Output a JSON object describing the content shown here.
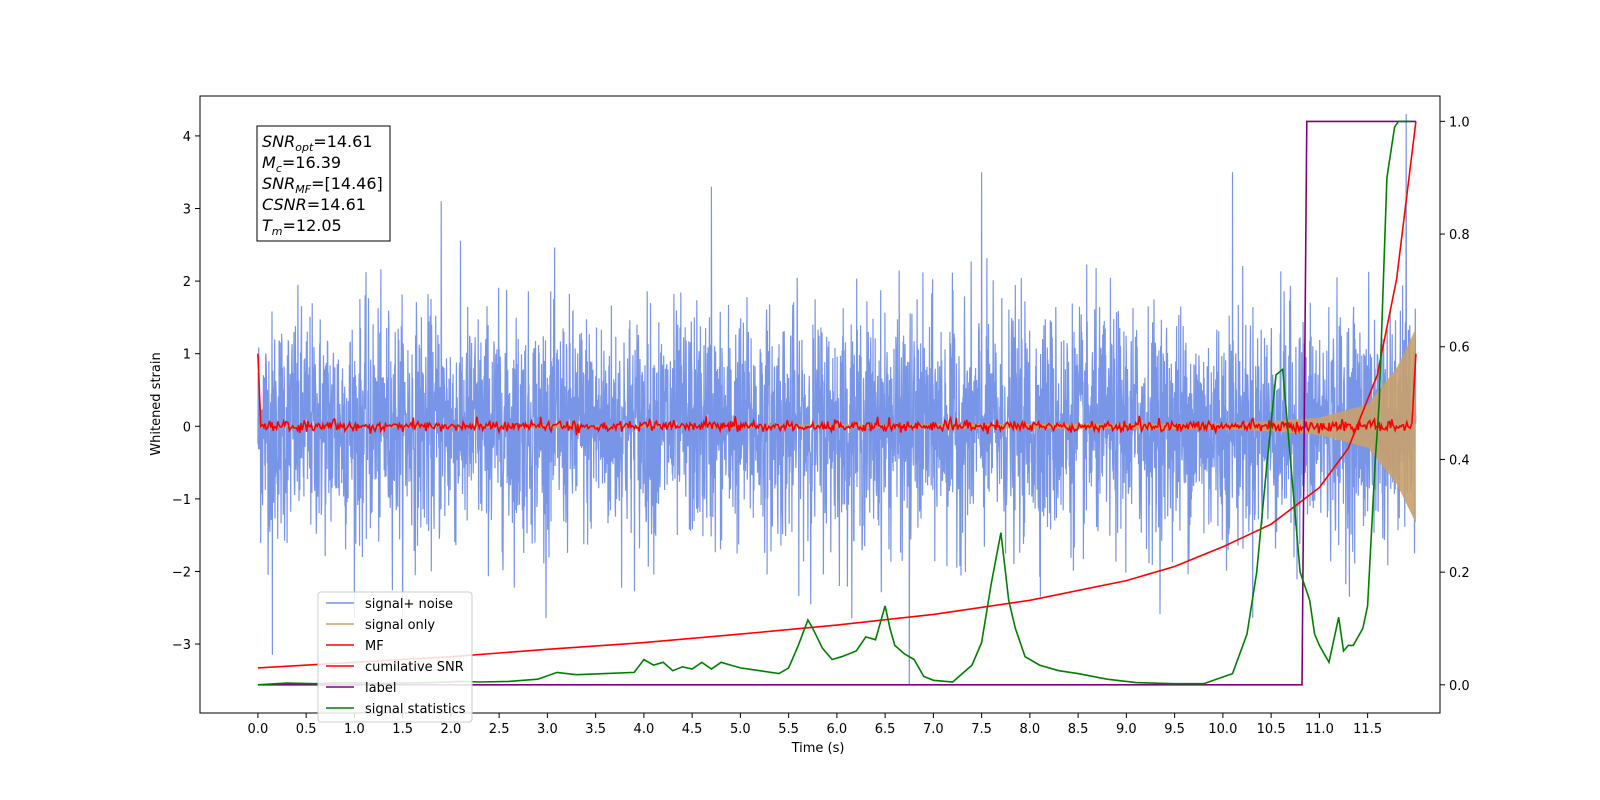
{
  "chart_data": {
    "type": "line",
    "xlabel": "Time (s)",
    "ylabel": "Whitened strain",
    "xlim": [
      -0.6,
      12.25
    ],
    "ylim": [
      -3.95,
      4.55
    ],
    "y2lim": [
      -0.05,
      1.045
    ],
    "x_ticks": [
      "0.0",
      "0.5",
      "1.0",
      "1.5",
      "2.0",
      "2.5",
      "3.0",
      "3.5",
      "4.0",
      "4.5",
      "5.0",
      "5.5",
      "6.0",
      "6.5",
      "7.0",
      "7.5",
      "8.0",
      "8.5",
      "9.0",
      "9.5",
      "10.0",
      "10.5",
      "11.0",
      "11.5"
    ],
    "y_ticks": [
      "−3",
      "−2",
      "−1",
      "0",
      "1",
      "2",
      "3",
      "4"
    ],
    "y2_ticks": [
      "0.0",
      "0.2",
      "0.4",
      "0.6",
      "0.8",
      "1.0"
    ],
    "grid": false,
    "legend_position": "lower-left",
    "annotation": {
      "lines": [
        {
          "sym": "SNR",
          "sub": "opt",
          "value": "=14.61"
        },
        {
          "sym": "M",
          "sub": "c",
          "value": "=16.39"
        },
        {
          "sym": "SNR",
          "sub": "MF",
          "value": "=[14.46]"
        },
        {
          "sym": "CSNR",
          "sub": "",
          "value": "=14.61"
        },
        {
          "sym": "T",
          "sub": "m",
          "value": "=12.05"
        }
      ]
    },
    "series": [
      {
        "name": "signal+ noise",
        "color": "#7895e8",
        "axis": "left",
        "kind": "noise",
        "x_range": [
          0.0,
          12.0
        ],
        "typical_envelope": [
          -2.3,
          2.3
        ],
        "peak_values": [
          {
            "x": 1.9,
            "y": 3.1
          },
          {
            "x": 4.7,
            "y": 3.3
          },
          {
            "x": 7.5,
            "y": 3.5
          },
          {
            "x": 10.1,
            "y": 3.5
          },
          {
            "x": 11.9,
            "y": 4.3
          },
          {
            "x": 0.15,
            "y": -3.15
          },
          {
            "x": 6.75,
            "y": -3.55
          }
        ]
      },
      {
        "name": "signal only",
        "color": "#c9a06b",
        "axis": "left",
        "kind": "chirp",
        "x": [
          0.0,
          10.0,
          10.5,
          11.0,
          11.5,
          11.8,
          12.0
        ],
        "amplitude": [
          0.0,
          0.04,
          0.07,
          0.12,
          0.3,
          0.8,
          1.35
        ]
      },
      {
        "name": "MF",
        "color": "#ff0000",
        "axis": "left",
        "kind": "mf",
        "x": [
          0.0,
          0.03,
          11.95,
          12.0
        ],
        "y": [
          1.0,
          0.0,
          0.0,
          1.0
        ],
        "noise_amplitude": 0.06
      },
      {
        "name": "cumilative SNR",
        "color": "#ff0000",
        "axis": "right",
        "x": [
          0.0,
          1.0,
          2.0,
          3.0,
          4.0,
          5.0,
          6.0,
          7.0,
          8.0,
          9.0,
          9.5,
          10.0,
          10.5,
          11.0,
          11.3,
          11.6,
          11.8,
          12.0
        ],
        "y": [
          0.03,
          0.04,
          0.05,
          0.063,
          0.075,
          0.09,
          0.106,
          0.125,
          0.15,
          0.185,
          0.21,
          0.245,
          0.285,
          0.35,
          0.42,
          0.55,
          0.72,
          1.0
        ]
      },
      {
        "name": "label",
        "color": "#800080",
        "axis": "right",
        "x": [
          0.0,
          10.82,
          10.87,
          12.0
        ],
        "y": [
          0.0,
          0.0,
          1.0,
          1.0
        ]
      },
      {
        "name": "signal statistics",
        "color": "#008000",
        "axis": "right",
        "x": [
          0.0,
          0.3,
          0.6,
          0.9,
          1.2,
          1.5,
          1.8,
          2.1,
          2.3,
          2.6,
          2.9,
          3.1,
          3.3,
          3.6,
          3.9,
          4.0,
          4.1,
          4.2,
          4.3,
          4.4,
          4.5,
          4.6,
          4.7,
          4.8,
          4.9,
          5.0,
          5.2,
          5.4,
          5.5,
          5.6,
          5.7,
          5.75,
          5.85,
          5.95,
          6.05,
          6.2,
          6.3,
          6.4,
          6.5,
          6.55,
          6.6,
          6.7,
          6.8,
          6.9,
          7.0,
          7.2,
          7.4,
          7.5,
          7.6,
          7.7,
          7.78,
          7.85,
          7.95,
          8.1,
          8.3,
          8.5,
          8.8,
          9.1,
          9.5,
          9.8,
          10.1,
          10.25,
          10.35,
          10.45,
          10.55,
          10.62,
          10.7,
          10.8,
          10.9,
          10.95,
          11.0,
          11.1,
          11.2,
          11.25,
          11.3,
          11.35,
          11.45,
          11.5,
          11.58,
          11.62,
          11.7,
          11.78,
          11.82,
          11.9,
          11.95
        ],
        "y": [
          0.0,
          0.003,
          0.002,
          0.004,
          0.002,
          0.003,
          0.004,
          0.006,
          0.005,
          0.006,
          0.01,
          0.022,
          0.018,
          0.02,
          0.022,
          0.045,
          0.035,
          0.04,
          0.025,
          0.032,
          0.028,
          0.04,
          0.028,
          0.04,
          0.035,
          0.03,
          0.025,
          0.02,
          0.03,
          0.07,
          0.115,
          0.1,
          0.065,
          0.045,
          0.05,
          0.06,
          0.085,
          0.08,
          0.14,
          0.1,
          0.07,
          0.055,
          0.045,
          0.015,
          0.008,
          0.005,
          0.035,
          0.075,
          0.18,
          0.27,
          0.15,
          0.1,
          0.05,
          0.035,
          0.025,
          0.02,
          0.01,
          0.004,
          0.002,
          0.002,
          0.02,
          0.09,
          0.2,
          0.38,
          0.55,
          0.56,
          0.4,
          0.2,
          0.15,
          0.09,
          0.07,
          0.04,
          0.12,
          0.06,
          0.07,
          0.07,
          0.1,
          0.14,
          0.4,
          0.5,
          0.9,
          0.99,
          1.0,
          1.0,
          1.0
        ]
      }
    ]
  }
}
